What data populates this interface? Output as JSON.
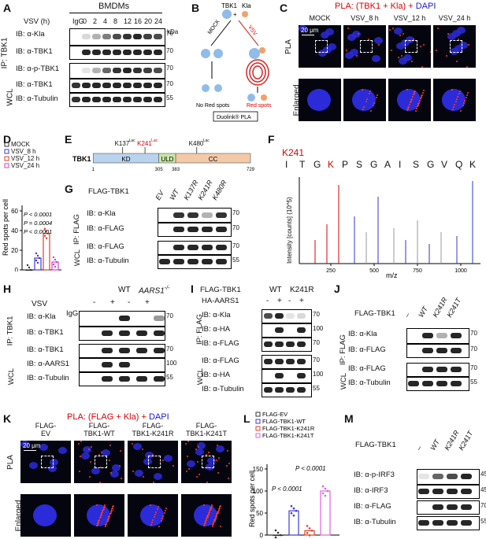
{
  "panelA": {
    "label": "A",
    "title": "BMDMs",
    "vsv_label": "VSV (h)",
    "timepoints": [
      "IgG",
      "0",
      "2",
      "4",
      "8",
      "12",
      "16",
      "20",
      "24"
    ],
    "kda": "kDa",
    "ip_label": "IP: TBK1",
    "wcl_label": "WCL",
    "blots": [
      {
        "label": "IB: α-Kla",
        "marker": "70"
      },
      {
        "label": "IB: α-TBK1",
        "marker": "70"
      },
      {
        "label": "IB: α-p-TBK1",
        "marker": "70"
      },
      {
        "label": "IB: α-TBK1",
        "marker": "70"
      },
      {
        "label": "IB: α-Tubulin",
        "marker": "55"
      }
    ]
  },
  "panelB": {
    "label": "B",
    "tbk1": "TBK1",
    "kla": "Kla",
    "mock": "MOCK",
    "vsv": "VSV",
    "no_red": "No Red spots",
    "red": "Red spots",
    "kit": "Duolink® PLA"
  },
  "panelC": {
    "label": "C",
    "title_pre": "PLA: (TBK1 + ",
    "title_kla": "Kla",
    "title_mid": ") + ",
    "title_dapi": "DAPI",
    "cols": [
      "MOCK",
      "VSV_8 h",
      "VSV_12 h",
      "VSV_24 h"
    ],
    "rows": [
      "PLA",
      "Enlarged"
    ],
    "scale": "20 μm"
  },
  "panelD": {
    "label": "D",
    "legend": [
      "MOCK",
      "VSV_8 h",
      "VSV_12 h",
      "VSV_24 h"
    ],
    "colors": [
      "#333333",
      "#3b3bd9",
      "#e0402a",
      "#d23fd2"
    ],
    "ylabel": "Red spots per cell",
    "yticks": [
      "0",
      "20",
      "40",
      "60"
    ],
    "stats": [
      "P < 0.0001",
      "P = 0.0004",
      "P < 0.0001"
    ]
  },
  "panelE": {
    "label": "E",
    "protein": "TBK1",
    "domains": [
      "KD",
      "ULD",
      "CC"
    ],
    "sites": [
      "K137",
      "K241",
      "K480"
    ],
    "sup": "Lac",
    "positions": [
      "1",
      "305",
      "383",
      "729"
    ]
  },
  "panelF": {
    "label": "F",
    "site": "K241",
    "sequence": [
      "I",
      "T",
      "G",
      "K",
      "P",
      "S",
      "G",
      "A",
      "I",
      "S",
      "G",
      "V",
      "Q",
      "K"
    ],
    "ylabel": "Intensity [counts] (10^5)",
    "xlabel": "m/z",
    "xticks": [
      "250",
      "500",
      "750",
      "1000"
    ]
  },
  "panelG": {
    "label": "G",
    "construct": "FLAG-TBK1",
    "lanes": [
      "EV",
      "WT",
      "K137R",
      "K241R",
      "K480R"
    ],
    "ip": "IP: FLAG",
    "wcl": "WCL",
    "blots": [
      {
        "label": "IB: α-Kla",
        "marker": "70"
      },
      {
        "label": "IB: α-FLAG",
        "marker": "70"
      },
      {
        "label": "IB: α-FLAG",
        "marker": "70"
      },
      {
        "label": "IB: α-Tubulin",
        "marker": "55"
      }
    ]
  },
  "panelH": {
    "label": "H",
    "wt": "WT",
    "ko": "AARS1",
    "ko_sup": "-/-",
    "vsv": "VSV",
    "igg": "IgG",
    "signs": [
      "-",
      "+",
      "-",
      "+"
    ],
    "ip": "IP: TBK1",
    "wcl": "WCL",
    "blots": [
      {
        "label": "IB: α-Kla",
        "marker": "70"
      },
      {
        "label": "IB: α-TBK1",
        "marker": ""
      },
      {
        "label": "IB: α-TBK1",
        "marker": "70"
      },
      {
        "label": "IB: α-AARS1",
        "marker": "100"
      },
      {
        "label": "IB: α-Tubulin",
        "marker": "55"
      }
    ]
  },
  "panelI": {
    "label": "I",
    "construct": "FLAG-TBK1",
    "wt": "WT",
    "mut": "K241R",
    "ha": "HA-AARS1",
    "signs": [
      "-",
      "+",
      "-",
      "+"
    ],
    "ip": "IP: FLAG",
    "wcl": "WCL",
    "blots": [
      {
        "label": "IB: α-Kla",
        "marker": "70"
      },
      {
        "label": "IB: α-HA",
        "marker": "100"
      },
      {
        "label": "IB: α-FLAG",
        "marker": "70"
      },
      {
        "label": "IB: α-FLAG",
        "marker": "70"
      },
      {
        "label": "IB: α-HA",
        "marker": "100"
      },
      {
        "label": "IB: α-Tubulin",
        "marker": "55"
      }
    ]
  },
  "panelJ": {
    "label": "J",
    "construct": "FLAG-TBK1",
    "lanes": [
      "–",
      "WT",
      "K241R",
      "K241T"
    ],
    "ip": "IP: FLAG",
    "wcl": "WCL",
    "blots": [
      {
        "label": "IB: α-Kla",
        "marker": "70"
      },
      {
        "label": "IB: α-FLAG",
        "marker": "70"
      },
      {
        "label": "IB: α-FLAG",
        "marker": "70"
      },
      {
        "label": "IB: α-Tubulin",
        "marker": "55"
      }
    ]
  },
  "panelK": {
    "label": "K",
    "title_pre": "PLA: (FLAG + ",
    "title_kla": "Kla",
    "title_mid": ") + ",
    "title_dapi": "DAPI",
    "cols": [
      "FLAG-\nEV",
      "FLAG-\nTBK1-WT",
      "FLAG-\nTBK1-K241R",
      "FLAG-\nTBK1-K241T"
    ],
    "rows": [
      "PLA",
      "Enlarged"
    ],
    "scale": "20 μm"
  },
  "panelL": {
    "label": "L",
    "legend": [
      "FLAG-EV",
      "FLAG-TBK1-WT",
      "FLAG-TBK1-K241R",
      "FLAG-TBK1-K241T"
    ],
    "colors": [
      "#333333",
      "#3b3bd9",
      "#e0402a",
      "#e060e0"
    ],
    "ylabel": "Red spots per cell",
    "yticks": [
      "0",
      "50",
      "100",
      "150"
    ],
    "stats": [
      "P < 0.0001",
      "P < 0.0001"
    ]
  },
  "panelM": {
    "label": "M",
    "construct": "FLAG-TBK1",
    "lanes": [
      "–",
      "WT",
      "K241R",
      "K241T"
    ],
    "blots": [
      {
        "label": "IB: α-p-IRF3",
        "marker": "45"
      },
      {
        "label": "IB: α-IRF3",
        "marker": "45"
      },
      {
        "label": "IB: α-FLAG",
        "marker": "70"
      },
      {
        "label": "IB: α-Tubulin",
        "marker": "55"
      }
    ]
  }
}
